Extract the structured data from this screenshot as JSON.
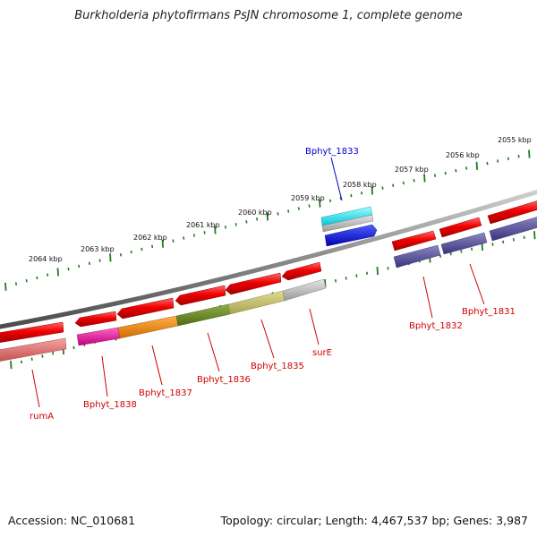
{
  "title": "Burkholderia phytofirmans PsJN chromosome 1, complete genome",
  "footer": {
    "accession": "Accession: NC_010681",
    "summary": "Topology: circular; Length: 4,467,537 bp; Genes: 3,987"
  },
  "scale_labels": [
    "2064 kbp",
    "2063 kbp",
    "2062 kbp",
    "2061 kbp",
    "2060 kbp",
    "2059 kbp",
    "2058 kbp",
    "2057 kbp",
    "2056 kbp",
    "2055 kbp"
  ],
  "gene_labels": [
    {
      "text": "Bphyt_1833",
      "color": "#0000c8"
    },
    {
      "text": "Bphyt_1832",
      "color": "#d00000"
    },
    {
      "text": "Bphyt_1831",
      "color": "#d00000"
    },
    {
      "text": "surE",
      "color": "#d00000"
    },
    {
      "text": "Bphyt_1835",
      "color": "#d00000"
    },
    {
      "text": "Bphyt_1836",
      "color": "#d00000"
    },
    {
      "text": "Bphyt_1837",
      "color": "#d00000"
    },
    {
      "text": "Bphyt_1838",
      "color": "#d00000"
    },
    {
      "text": "rumA",
      "color": "#d00000"
    }
  ],
  "colors": {
    "backbone": "#7a7a7a",
    "scale_ticks": "#1e7d1e",
    "gene_forward": "#e80000",
    "gene_blue_strand": "#0000ee",
    "label_red": "#d00000",
    "label_blue": "#0000c8"
  }
}
